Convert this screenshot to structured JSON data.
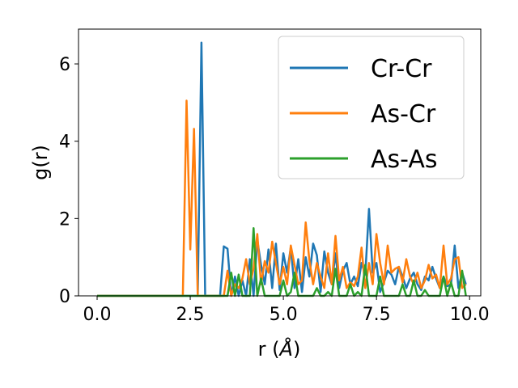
{
  "chart_data": {
    "type": "line",
    "xlabel_prefix": "r (",
    "xlabel_unit": "Å",
    "xlabel_suffix": ")",
    "ylabel": "g(r)",
    "xlim": [
      -0.5,
      10.3
    ],
    "ylim": [
      0,
      6.9
    ],
    "xticks": [
      0.0,
      2.5,
      5.0,
      7.5,
      10.0
    ],
    "xtick_labels": [
      "0.0",
      "2.5",
      "5.0",
      "7.5",
      "10.0"
    ],
    "yticks": [
      0,
      2,
      4,
      6
    ],
    "ytick_labels": [
      "0",
      "2",
      "4",
      "6"
    ],
    "grid": false,
    "legend_position": "top-right",
    "x": [
      0.0,
      0.1,
      0.2,
      0.3,
      0.4,
      0.5,
      0.6,
      0.7,
      0.8,
      0.9,
      1.0,
      1.1,
      1.2,
      1.3,
      1.4,
      1.5,
      1.6,
      1.7,
      1.8,
      1.9,
      2.0,
      2.1,
      2.2,
      2.3,
      2.4,
      2.5,
      2.6,
      2.7,
      2.8,
      2.9,
      3.0,
      3.1,
      3.2,
      3.3,
      3.4,
      3.5,
      3.6,
      3.7,
      3.8,
      3.9,
      4.0,
      4.1,
      4.2,
      4.3,
      4.4,
      4.5,
      4.6,
      4.7,
      4.8,
      4.9,
      5.0,
      5.1,
      5.2,
      5.3,
      5.4,
      5.5,
      5.6,
      5.7,
      5.8,
      5.9,
      6.0,
      6.1,
      6.2,
      6.3,
      6.4,
      6.5,
      6.6,
      6.7,
      6.8,
      6.9,
      7.0,
      7.1,
      7.2,
      7.3,
      7.4,
      7.5,
      7.6,
      7.7,
      7.8,
      7.9,
      8.0,
      8.1,
      8.2,
      8.3,
      8.4,
      8.5,
      8.6,
      8.7,
      8.8,
      8.9,
      9.0,
      9.1,
      9.2,
      9.3,
      9.4,
      9.5,
      9.6,
      9.7,
      9.8,
      9.9
    ],
    "series": [
      {
        "name": "Cr-Cr",
        "color": "#1f77b4",
        "values": [
          0,
          0,
          0,
          0,
          0,
          0,
          0,
          0,
          0,
          0,
          0,
          0,
          0,
          0,
          0,
          0,
          0,
          0,
          0,
          0,
          0,
          0,
          0,
          0,
          0,
          0,
          0,
          0,
          6.55,
          0,
          0,
          0,
          0,
          0,
          1.28,
          1.22,
          0,
          0.5,
          0,
          0.4,
          0,
          0.95,
          0,
          1.45,
          0.8,
          0.3,
          1.2,
          0.2,
          1.35,
          0.15,
          1.1,
          0.6,
          1.25,
          0.2,
          0.95,
          0.1,
          1.0,
          0.5,
          1.35,
          1.05,
          0.1,
          1.15,
          0.6,
          0.3,
          1.1,
          0.2,
          0.65,
          0.85,
          0.3,
          0.5,
          0.25,
          0.85,
          0.55,
          2.25,
          0.6,
          0.85,
          0.1,
          0.35,
          0.65,
          0.55,
          0.3,
          0.75,
          0.5,
          0.2,
          0.45,
          0.6,
          0.3,
          0.15,
          0.5,
          0.4,
          0.75,
          0.45,
          0.2,
          0.5,
          0.25,
          0.3,
          1.3,
          0.2,
          0.6,
          0.3
        ]
      },
      {
        "name": "As-Cr",
        "color": "#ff7f0e",
        "values": [
          0,
          0,
          0,
          0,
          0,
          0,
          0,
          0,
          0,
          0,
          0,
          0,
          0,
          0,
          0,
          0,
          0,
          0,
          0,
          0,
          0,
          0,
          0,
          0,
          5.05,
          1.2,
          4.32,
          0,
          0,
          0,
          0,
          0,
          0,
          0,
          0,
          0.65,
          0,
          0.3,
          0.2,
          0.45,
          0.95,
          0.3,
          0.7,
          1.6,
          0.3,
          0.9,
          0.6,
          1.4,
          0.85,
          0.3,
          0.75,
          0.3,
          1.3,
          0.8,
          0.3,
          0.4,
          1.9,
          0.9,
          0.3,
          0.85,
          0.5,
          0.2,
          1.1,
          0.3,
          1.55,
          0.4,
          0.75,
          0.2,
          0.35,
          0.25,
          0.5,
          1.25,
          0.2,
          0.85,
          0.3,
          1.6,
          0.85,
          0.3,
          1.3,
          0.6,
          0.7,
          0.75,
          0.35,
          0.95,
          0.5,
          0.3,
          0.6,
          0.2,
          0.4,
          0.8,
          0.45,
          0.55,
          0.2,
          1.3,
          0.3,
          0.45,
          0.95,
          1.0,
          0.2,
          0.3
        ]
      },
      {
        "name": "As-As",
        "color": "#2ca02c",
        "values": [
          0,
          0,
          0,
          0,
          0,
          0,
          0,
          0,
          0,
          0,
          0,
          0,
          0,
          0,
          0,
          0,
          0,
          0,
          0,
          0,
          0,
          0,
          0,
          0,
          0,
          0,
          0,
          0,
          0,
          0,
          0,
          0,
          0,
          0,
          0,
          0,
          0.6,
          0,
          0.55,
          0,
          0,
          0,
          1.75,
          0,
          0.45,
          0,
          0,
          0,
          0,
          0,
          0.4,
          0,
          0.1,
          0.6,
          0,
          0,
          0,
          0,
          0,
          0.2,
          0,
          0,
          0.1,
          0,
          0.7,
          0,
          0,
          0,
          0.3,
          0,
          0.1,
          0,
          0.8,
          0,
          0,
          0,
          0.5,
          0,
          0,
          0,
          0,
          0,
          0.3,
          0,
          0,
          0.4,
          0,
          0,
          0.15,
          0,
          0,
          0,
          0,
          0.5,
          0,
          0.35,
          0,
          0,
          0.65,
          0
        ]
      }
    ]
  }
}
